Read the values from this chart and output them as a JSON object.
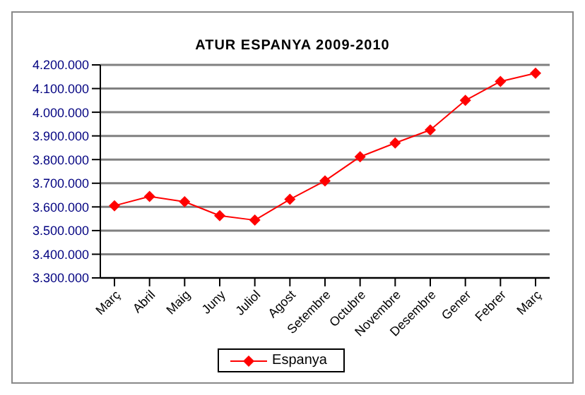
{
  "chart_data": {
    "type": "line",
    "title": "ATUR ESPANYA 2009-2010",
    "categories": [
      "Març",
      "Abril",
      "Maig",
      "Juny",
      "Juliol",
      "Agost",
      "Setembre",
      "Octubre",
      "Novembre",
      "Desembre",
      "Gener",
      "Febrer",
      "Març"
    ],
    "series": [
      {
        "name": "Espanya",
        "color": "#ff0000",
        "values": [
          3605000,
          3644000,
          3622000,
          3563000,
          3544000,
          3632000,
          3710000,
          3812000,
          3870000,
          3925000,
          4050000,
          4130000,
          4165000
        ]
      }
    ],
    "ylim": [
      3300000,
      4200000
    ],
    "yticks": [
      {
        "value": 3300000,
        "label": "3.300.000"
      },
      {
        "value": 3400000,
        "label": "3.400.000"
      },
      {
        "value": 3500000,
        "label": "3.500.000"
      },
      {
        "value": 3600000,
        "label": "3.600.000"
      },
      {
        "value": 3700000,
        "label": "3.700.000"
      },
      {
        "value": 3800000,
        "label": "3.800.000"
      },
      {
        "value": 3900000,
        "label": "3.900.000"
      },
      {
        "value": 4000000,
        "label": "4.000.000"
      },
      {
        "value": 4100000,
        "label": "4.100.000"
      },
      {
        "value": 4200000,
        "label": "4.200.000"
      }
    ],
    "grid": "y",
    "legend": "bottom",
    "marker": "diamond",
    "line_style": "solid"
  }
}
